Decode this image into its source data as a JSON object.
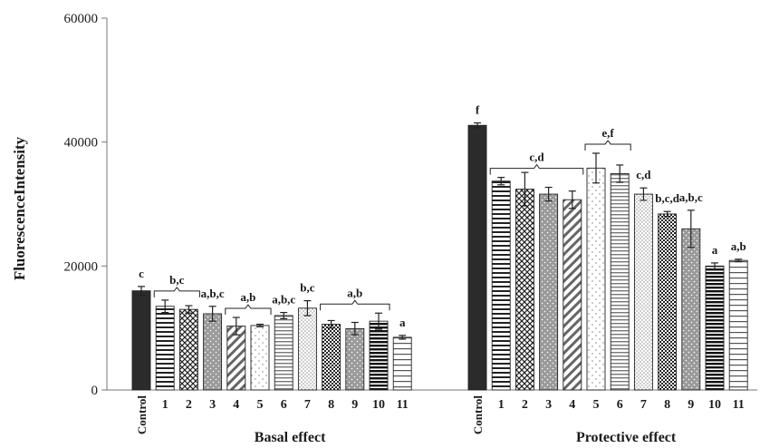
{
  "chart_data": {
    "type": "bar",
    "ylabel": "FluorescenceIntensity",
    "xlabel": "",
    "ylim": [
      0,
      60000
    ],
    "yticks": [
      0,
      20000,
      40000,
      60000
    ],
    "ytick_labels": [
      "0",
      "20000",
      "40000",
      "60000"
    ],
    "grid": false,
    "legend": "none",
    "groups": [
      {
        "name": "Basal effect",
        "categories": [
          "Control",
          "1",
          "2",
          "3",
          "4",
          "5",
          "6",
          "7",
          "8",
          "9",
          "10",
          "11"
        ],
        "values": [
          16000,
          13500,
          13000,
          12300,
          10300,
          10400,
          12000,
          13200,
          10600,
          9900,
          11100,
          8500
        ],
        "errors": [
          700,
          1000,
          600,
          1200,
          1400,
          200,
          500,
          1200,
          600,
          1000,
          1300,
          300
        ],
        "patterns": [
          "solid-black",
          "hstripes",
          "crosshatch",
          "dots-gray",
          "diagonal",
          "sparse-dots",
          "hstripes-gray",
          "dense-dots",
          "checker",
          "dots-gray",
          "hstripes-dark",
          "hstripes-wide"
        ]
      },
      {
        "name": "Protective effect",
        "categories": [
          "Control",
          "1",
          "2",
          "3",
          "4",
          "5",
          "6",
          "7",
          "8",
          "9",
          "10",
          "11"
        ],
        "values": [
          42700,
          33700,
          32400,
          31600,
          30700,
          35800,
          34900,
          31600,
          28400,
          26000,
          20000,
          20900
        ],
        "errors": [
          400,
          600,
          2700,
          1100,
          1400,
          2400,
          1400,
          1000,
          400,
          3000,
          500,
          200
        ],
        "patterns": [
          "solid-black",
          "hstripes",
          "crosshatch",
          "dots-gray",
          "diagonal",
          "sparse-dots",
          "hstripes-gray",
          "dense-dots",
          "checker",
          "dots-gray",
          "hstripes-dark",
          "hstripes-wide"
        ]
      }
    ],
    "annotations": [
      {
        "group": 0,
        "text": "c",
        "bars": [
          0
        ],
        "bracket": false
      },
      {
        "group": 0,
        "text": "b,c",
        "bars": [
          1,
          2
        ],
        "bracket": true
      },
      {
        "group": 0,
        "text": "a,b,c",
        "bars": [
          3
        ],
        "bracket": false
      },
      {
        "group": 0,
        "text": "a,b",
        "bars": [
          4,
          5
        ],
        "bracket": true
      },
      {
        "group": 0,
        "text": "a,b,c",
        "bars": [
          6
        ],
        "bracket": false
      },
      {
        "group": 0,
        "text": "b,c",
        "bars": [
          7
        ],
        "bracket": false
      },
      {
        "group": 0,
        "text": "a,b",
        "bars": [
          8,
          10
        ],
        "bracket": true
      },
      {
        "group": 0,
        "text": "a",
        "bars": [
          11
        ],
        "bracket": false
      },
      {
        "group": 1,
        "text": "f",
        "bars": [
          0
        ],
        "bracket": false
      },
      {
        "group": 1,
        "text": "c,d",
        "bars": [
          1,
          4
        ],
        "bracket": true
      },
      {
        "group": 1,
        "text": "e,f",
        "bars": [
          5,
          6
        ],
        "bracket": true
      },
      {
        "group": 1,
        "text": "c,d",
        "bars": [
          7
        ],
        "bracket": false
      },
      {
        "group": 1,
        "text": "b,c,d",
        "bars": [
          8
        ],
        "bracket": false
      },
      {
        "group": 1,
        "text": "a,b,c",
        "bars": [
          9
        ],
        "bracket": false
      },
      {
        "group": 1,
        "text": "a",
        "bars": [
          10
        ],
        "bracket": false
      },
      {
        "group": 1,
        "text": "a,b",
        "bars": [
          11
        ],
        "bracket": false
      }
    ]
  }
}
